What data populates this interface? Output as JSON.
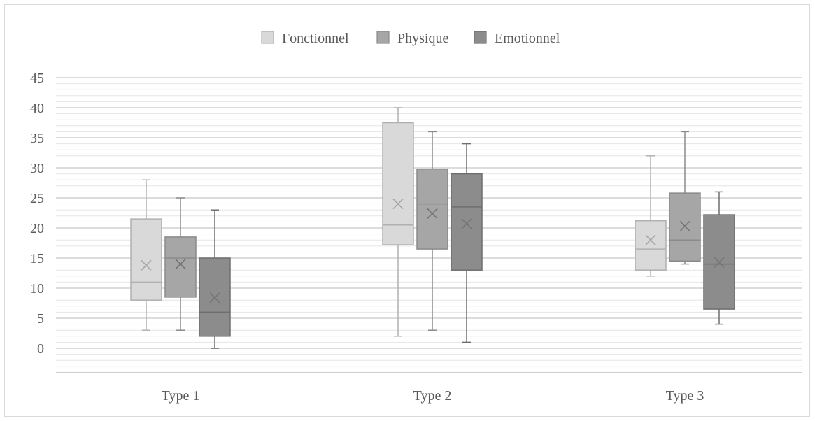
{
  "chart_data": {
    "type": "boxplot",
    "title": "",
    "xlabel": "",
    "ylabel": "",
    "ylim": [
      0,
      45
    ],
    "yticks": [
      0,
      5,
      10,
      15,
      20,
      25,
      30,
      35,
      40,
      45
    ],
    "ytick_labels": [
      "0",
      "5",
      "10",
      "15",
      "20",
      "25",
      "30",
      "35",
      "40",
      "45"
    ],
    "minor_grid_step": 1,
    "grid": true,
    "legend_position": "top-center",
    "categories": [
      "Type 1",
      "Type 2",
      "Type 3"
    ],
    "series": [
      {
        "name": "Fonctionnel",
        "color": "#d9d9d9",
        "stroke": "#b0b0b0",
        "boxes": [
          {
            "min": 3,
            "q1": 8,
            "median": 11,
            "q3": 21.5,
            "max": 28,
            "mean": 13.8
          },
          {
            "min": 2,
            "q1": 17.2,
            "median": 20.5,
            "q3": 37.5,
            "max": 40,
            "mean": 24
          },
          {
            "min": 12,
            "q1": 13,
            "median": 16.5,
            "q3": 21.2,
            "max": 32,
            "mean": 18
          }
        ]
      },
      {
        "name": "Physique",
        "color": "#a6a6a6",
        "stroke": "#8a8a8a",
        "boxes": [
          {
            "min": 3,
            "q1": 8.5,
            "median": 15,
            "q3": 18.5,
            "max": 25,
            "mean": 14
          },
          {
            "min": 3,
            "q1": 16.5,
            "median": 24,
            "q3": 29.8,
            "max": 36,
            "mean": 22.4
          },
          {
            "min": 14,
            "q1": 14.5,
            "median": 18,
            "q3": 25.8,
            "max": 36,
            "mean": 20.3
          }
        ]
      },
      {
        "name": "Emotionnel",
        "color": "#8c8c8c",
        "stroke": "#6e6e6e",
        "boxes": [
          {
            "min": 0,
            "q1": 2,
            "median": 6,
            "q3": 15,
            "max": 23,
            "mean": 8.4
          },
          {
            "min": 1,
            "q1": 13,
            "median": 23.5,
            "q3": 29,
            "max": 34,
            "mean": 20.7
          },
          {
            "min": 4,
            "q1": 6.5,
            "median": 14,
            "q3": 22.2,
            "max": 26,
            "mean": 14.3
          }
        ]
      }
    ]
  }
}
